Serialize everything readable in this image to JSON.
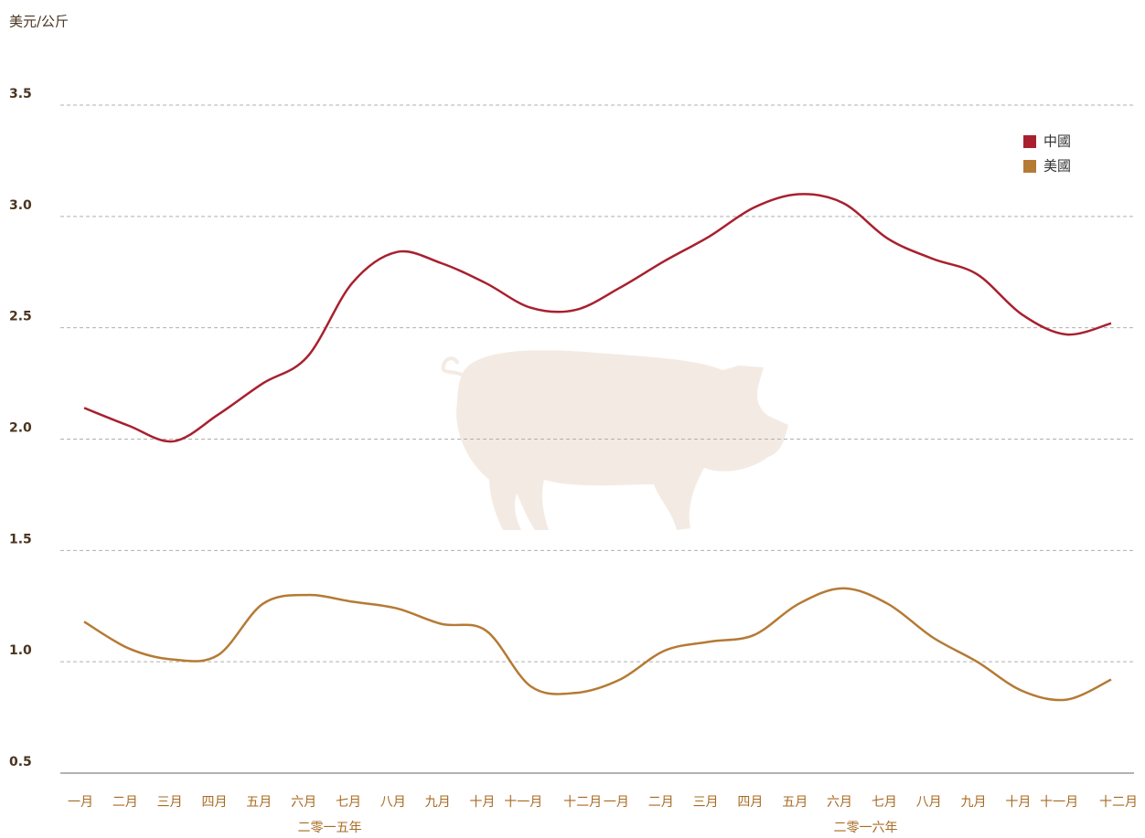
{
  "chart_data": {
    "type": "line",
    "y_axis_label": "美元/公斤",
    "categories": [
      "一月",
      "二月",
      "三月",
      "四月",
      "五月",
      "六月",
      "七月",
      "八月",
      "九月",
      "十月",
      "十一月",
      "十二月",
      "一月",
      "二月",
      "三月",
      "四月",
      "五月",
      "六月",
      "七月",
      "八月",
      "九月",
      "十月",
      "十一月",
      "十二月"
    ],
    "year_labels": [
      "二零一五年",
      "二零一六年"
    ],
    "series": [
      {
        "name": "中國",
        "color": "#a8202f",
        "values": [
          2.14,
          2.06,
          1.99,
          2.11,
          2.25,
          2.37,
          2.7,
          2.84,
          2.79,
          2.7,
          2.59,
          2.58,
          2.68,
          2.8,
          2.91,
          3.04,
          3.1,
          3.06,
          2.9,
          2.81,
          2.74,
          2.56,
          2.47,
          2.52
        ]
      },
      {
        "name": "美國",
        "color": "#b57a34",
        "values": [
          1.18,
          1.06,
          1.01,
          1.03,
          1.26,
          1.3,
          1.27,
          1.24,
          1.17,
          1.14,
          0.89,
          0.86,
          0.92,
          1.05,
          1.09,
          1.12,
          1.26,
          1.33,
          1.26,
          1.11,
          1.0,
          0.87,
          0.83,
          0.92
        ]
      }
    ],
    "ylim": [
      0.5,
      3.5
    ],
    "yticks": [
      0.5,
      {
        "value": 1.0,
        "label": "1.0"
      },
      1.5,
      {
        "value": 2.0,
        "label": "2.0"
      },
      2.5,
      {
        "value": 3.0,
        "label": "3.0"
      },
      3.5
    ],
    "grid": true,
    "legend": "top-right"
  }
}
